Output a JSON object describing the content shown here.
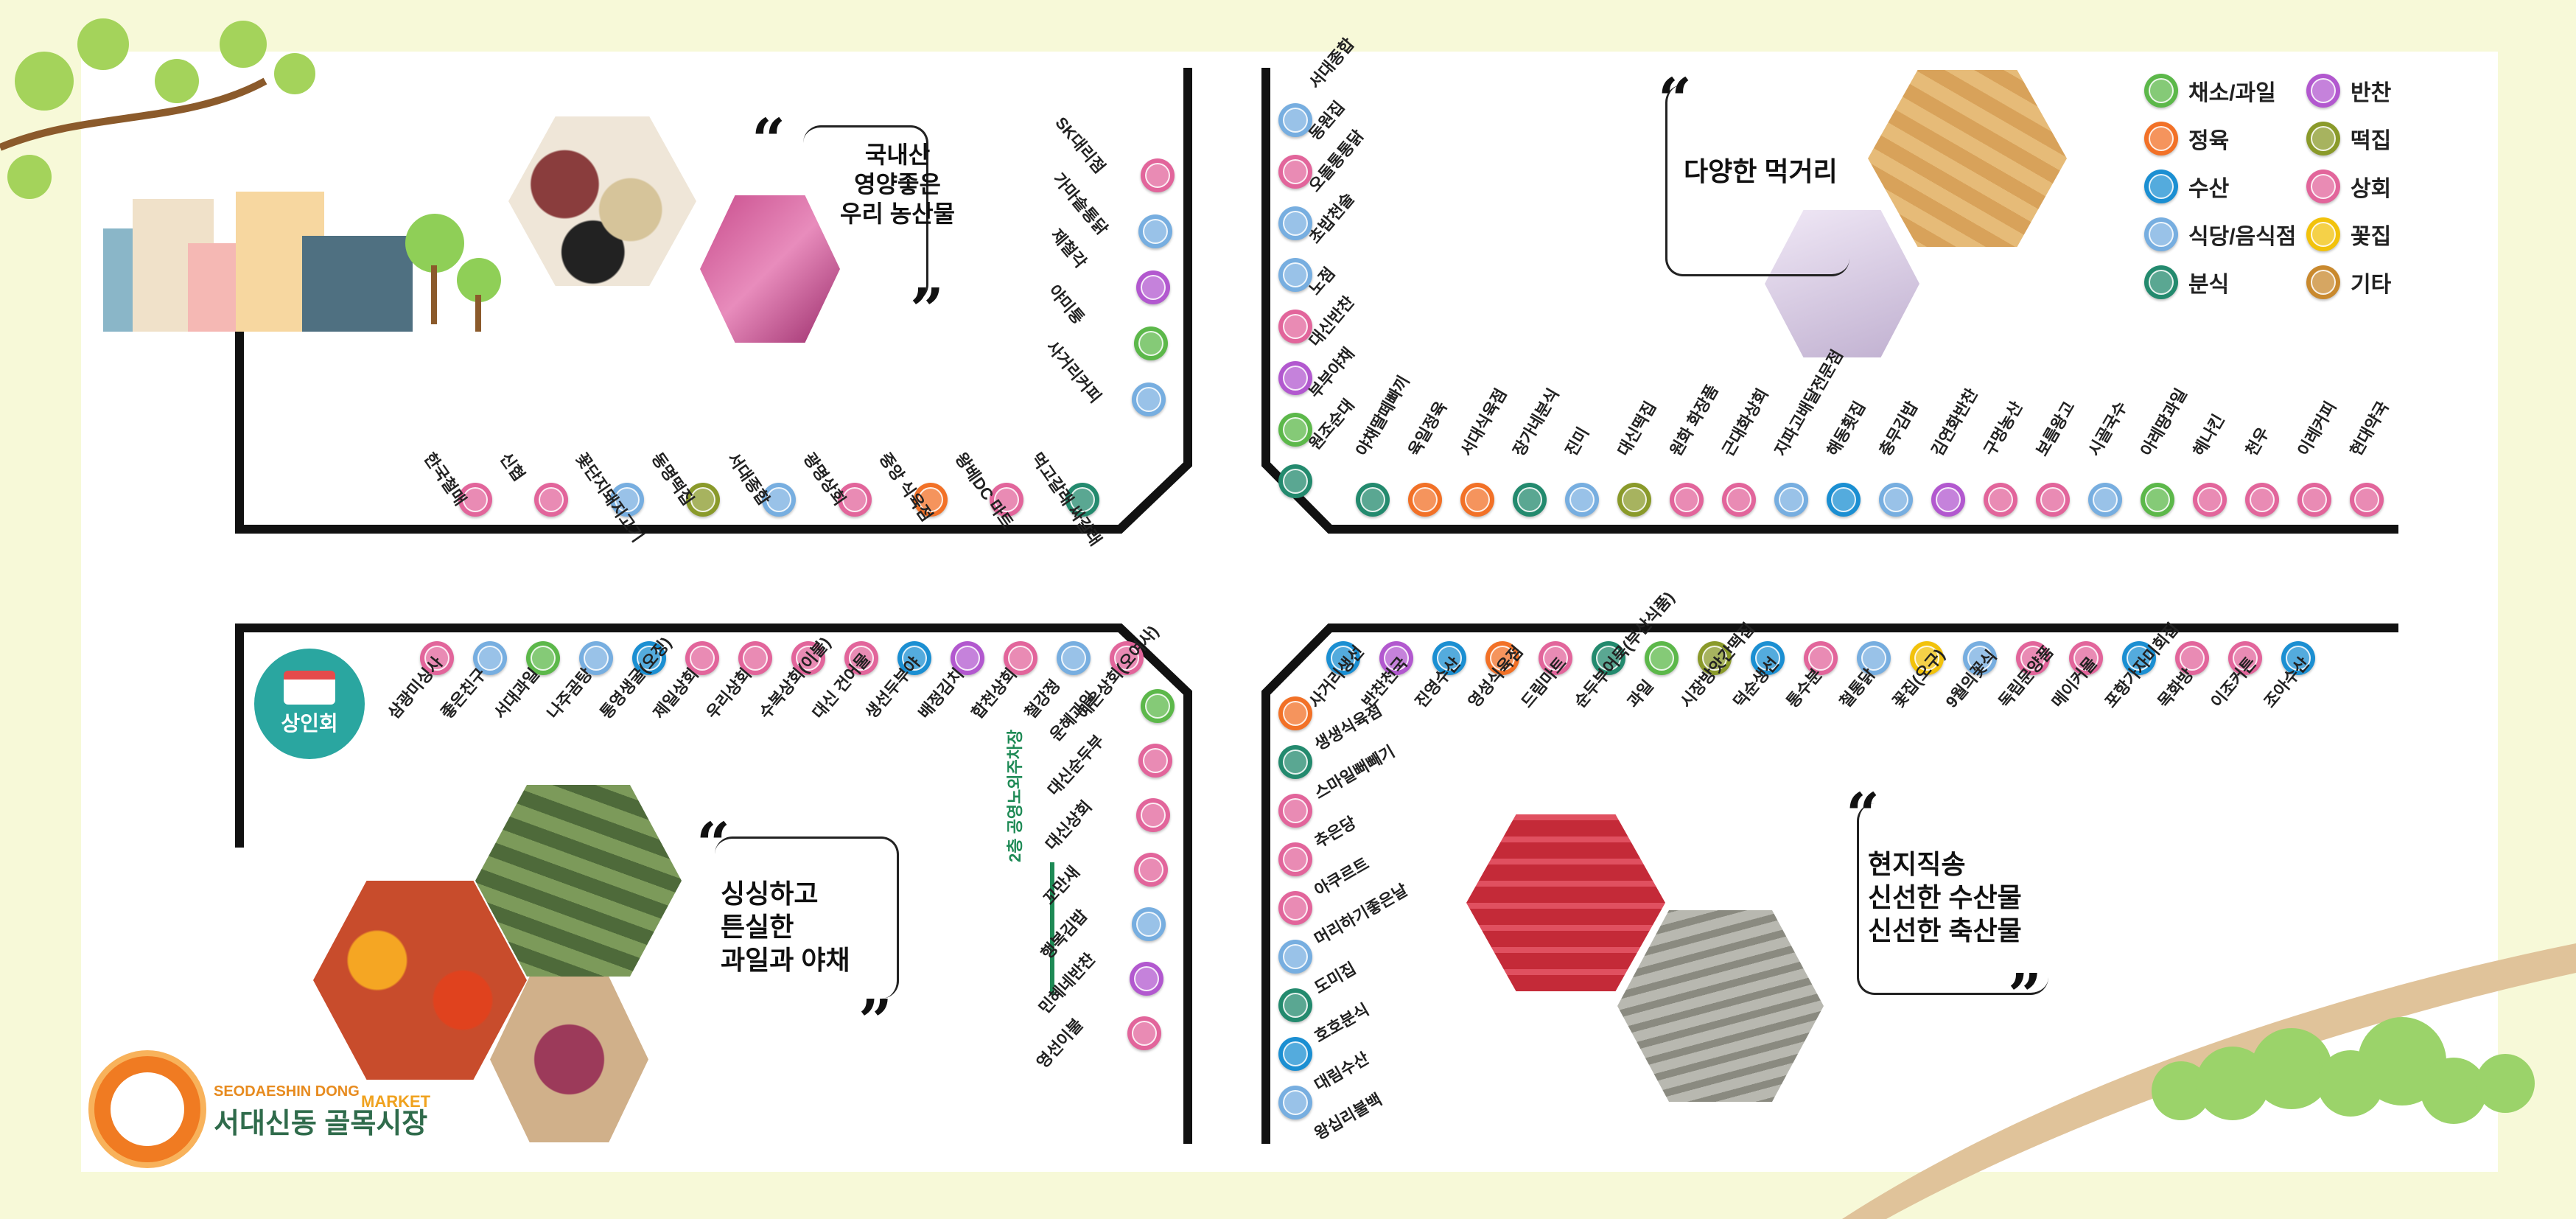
{
  "colors": {
    "produce": "#5cb84a",
    "meat": "#f27127",
    "seafood": "#1b8fd2",
    "restaurant": "#77aee0",
    "snack": "#238a6e",
    "sidedish": "#b258cf",
    "ricecake": "#8a9a2a",
    "shop": "#e2659b",
    "flower": "#f2c20b",
    "other": "#c9892e",
    "road": "#111111"
  },
  "legend": [
    {
      "cat": "produce",
      "label": "채소/과일",
      "icon": "leaf-icon"
    },
    {
      "cat": "sidedish",
      "label": "반찬",
      "icon": "eggplant-icon"
    },
    {
      "cat": "meat",
      "label": "정육",
      "icon": "meat-icon"
    },
    {
      "cat": "ricecake",
      "label": "떡집",
      "icon": "ricecake-icon"
    },
    {
      "cat": "seafood",
      "label": "수산",
      "icon": "fish-icon"
    },
    {
      "cat": "shop",
      "label": "상회",
      "icon": "store-icon"
    },
    {
      "cat": "restaurant",
      "label": "식당/음식점",
      "icon": "plate-icon"
    },
    {
      "cat": "flower",
      "label": "꽃집",
      "icon": "flower-icon"
    },
    {
      "cat": "snack",
      "label": "분식",
      "icon": "bowl-icon"
    },
    {
      "cat": "other",
      "label": "기타",
      "icon": "basket-icon"
    }
  ],
  "callouts": {
    "top_left": [
      "국내산",
      "영양좋은",
      "우리 농산물"
    ],
    "top_right": [
      "다양한 먹거리"
    ],
    "bottom_left": [
      "싱싱하고",
      "튼실한",
      "과일과 야채"
    ],
    "bottom_right": [
      "현지직송",
      "신선한 수산물",
      "신선한 축산물"
    ]
  },
  "badge": {
    "label": "상인회"
  },
  "parking": {
    "label": "2층 공영노외주차장"
  },
  "brand": {
    "name": "서대신동 골목시장",
    "english": "SEODAESHIN DONG",
    "market": "MARKET"
  },
  "stores": {
    "top_left_bottom": [
      {
        "name": "한국철매",
        "cat": "shop"
      },
      {
        "name": "신협",
        "cat": "shop"
      },
      {
        "name": "꽃단지돼지고기",
        "cat": "restaurant"
      },
      {
        "name": "동명떡집",
        "cat": "ricecake"
      },
      {
        "name": "서대종합",
        "cat": "restaurant"
      },
      {
        "name": "광명상회",
        "cat": "shop"
      },
      {
        "name": "중앙 식육점",
        "cat": "meat"
      },
      {
        "name": "왕베DC 마트",
        "cat": "shop"
      },
      {
        "name": "먹고갈래 싸갈래",
        "cat": "snack"
      }
    ],
    "top_left_right": [
      {
        "name": "SK대리점",
        "cat": "shop"
      },
      {
        "name": "가마솥통닭",
        "cat": "restaurant"
      },
      {
        "name": "제철각",
        "cat": "sidedish"
      },
      {
        "name": "야미퉁",
        "cat": "produce"
      },
      {
        "name": "사거리커피",
        "cat": "restaurant"
      }
    ],
    "top_right_left": [
      {
        "name": "서대종합",
        "cat": "restaurant"
      },
      {
        "name": "동원집",
        "cat": "shop"
      },
      {
        "name": "오돌통통닭",
        "cat": "restaurant"
      },
      {
        "name": "초밥천술",
        "cat": "restaurant"
      },
      {
        "name": "노점",
        "cat": "shop"
      },
      {
        "name": "대신반찬",
        "cat": "sidedish"
      },
      {
        "name": "부부야채",
        "cat": "produce"
      },
      {
        "name": "원조순대",
        "cat": "snack"
      }
    ],
    "top_right_bottom": [
      {
        "name": "야채딸떼빠끼",
        "cat": "snack"
      },
      {
        "name": "육일정육",
        "cat": "meat"
      },
      {
        "name": "서대식육점",
        "cat": "meat"
      },
      {
        "name": "장가네분식",
        "cat": "snack"
      },
      {
        "name": "진미",
        "cat": "restaurant"
      },
      {
        "name": "대신떡집",
        "cat": "ricecake"
      },
      {
        "name": "원화 화장품",
        "cat": "shop"
      },
      {
        "name": "근대화상회",
        "cat": "shop"
      },
      {
        "name": "지파고배달전문점",
        "cat": "restaurant"
      },
      {
        "name": "해동횟집",
        "cat": "seafood"
      },
      {
        "name": "충무김밥",
        "cat": "restaurant"
      },
      {
        "name": "김연화반찬",
        "cat": "sidedish"
      },
      {
        "name": "구멍농산",
        "cat": "shop"
      },
      {
        "name": "보름왕고",
        "cat": "shop"
      },
      {
        "name": "시골국수",
        "cat": "restaurant"
      },
      {
        "name": "아레땅과일",
        "cat": "produce"
      },
      {
        "name": "헤나킨",
        "cat": "shop"
      },
      {
        "name": "천우",
        "cat": "shop"
      },
      {
        "name": "이레커피",
        "cat": "shop"
      },
      {
        "name": "현대약국",
        "cat": "shop"
      }
    ],
    "bottom_left_top": [
      {
        "name": "삼광미싱사",
        "cat": "shop"
      },
      {
        "name": "좋은친구",
        "cat": "restaurant"
      },
      {
        "name": "서대과일",
        "cat": "produce"
      },
      {
        "name": "나주곰탕",
        "cat": "restaurant"
      },
      {
        "name": "통영생굴(오징)",
        "cat": "seafood"
      },
      {
        "name": "제일상회",
        "cat": "shop"
      },
      {
        "name": "우리상회",
        "cat": "shop"
      },
      {
        "name": "수복상회(이불)",
        "cat": "shop"
      },
      {
        "name": "대신 건어물",
        "cat": "shop"
      },
      {
        "name": "생선두부야",
        "cat": "seafood"
      },
      {
        "name": "배정김치",
        "cat": "sidedish"
      },
      {
        "name": "합천상회",
        "cat": "shop"
      },
      {
        "name": "철강정",
        "cat": "restaurant"
      },
      {
        "name": "예은상회(오여사)",
        "cat": "shop"
      }
    ],
    "bottom_left_right": [
      {
        "name": "운혜과일",
        "cat": "produce"
      },
      {
        "name": "대신순두부",
        "cat": "shop"
      },
      {
        "name": "대신상회",
        "cat": "shop"
      },
      {
        "name": "꼬만새",
        "cat": "shop"
      },
      {
        "name": "행복김밥",
        "cat": "restaurant"
      },
      {
        "name": "민혜네반찬",
        "cat": "sidedish"
      },
      {
        "name": "영선이불",
        "cat": "shop"
      }
    ],
    "bottom_right_top": [
      {
        "name": "사거리생선",
        "cat": "seafood"
      },
      {
        "name": "반찬천국",
        "cat": "sidedish"
      },
      {
        "name": "진영수산",
        "cat": "seafood"
      },
      {
        "name": "영성식육점",
        "cat": "meat"
      },
      {
        "name": "드림마트",
        "cat": "shop"
      },
      {
        "name": "순두부어묵(부산식품)",
        "cat": "snack"
      },
      {
        "name": "과일",
        "cat": "produce"
      },
      {
        "name": "시장방앗간떡집",
        "cat": "ricecake"
      },
      {
        "name": "덕순생선",
        "cat": "seafood"
      },
      {
        "name": "통수분",
        "cat": "shop"
      },
      {
        "name": "철통닭",
        "cat": "restaurant"
      },
      {
        "name": "꽃집(오구)",
        "cat": "flower"
      },
      {
        "name": "9월의꽃식",
        "cat": "restaurant"
      },
      {
        "name": "독립문양품",
        "cat": "shop"
      },
      {
        "name": "메이커몰",
        "cat": "shop"
      },
      {
        "name": "포항가자미회집",
        "cat": "seafood"
      },
      {
        "name": "목화방",
        "cat": "shop"
      },
      {
        "name": "이조커튼",
        "cat": "shop"
      },
      {
        "name": "조아수산",
        "cat": "seafood"
      }
    ],
    "bottom_right_left": [
      {
        "name": "생생식육점",
        "cat": "meat"
      },
      {
        "name": "스마일뻐빼기",
        "cat": "snack"
      },
      {
        "name": "추은당",
        "cat": "shop"
      },
      {
        "name": "아쿠르트",
        "cat": "shop"
      },
      {
        "name": "머리하기좋은날",
        "cat": "shop"
      },
      {
        "name": "도미집",
        "cat": "restaurant"
      },
      {
        "name": "호호분식",
        "cat": "snack"
      },
      {
        "name": "대림수산",
        "cat": "seafood"
      },
      {
        "name": "왕십리불백",
        "cat": "restaurant"
      }
    ]
  }
}
